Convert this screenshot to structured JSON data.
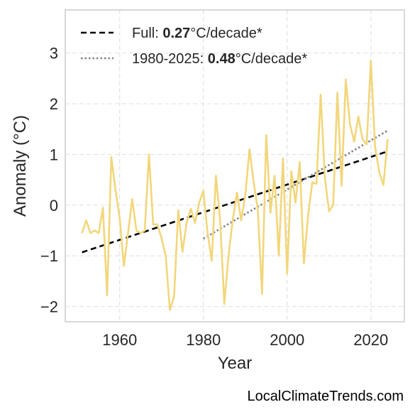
{
  "chart_data": {
    "type": "line",
    "xlabel": "Year",
    "ylabel": "Anomaly (°C)",
    "xlim": [
      1947,
      2028
    ],
    "ylim": [
      -2.3,
      3.85
    ],
    "xticks": [
      1960,
      1980,
      2000,
      2020
    ],
    "yticks": [
      -2,
      -1,
      0,
      1,
      2,
      3
    ],
    "ytick_labels": [
      "−2",
      "−1",
      "0",
      "1",
      "2",
      "3"
    ],
    "grid": true,
    "legend_position": "top-left",
    "series": [
      {
        "color": "#f2d67a",
        "x": [
          1951,
          1952,
          1953,
          1954,
          1955,
          1956,
          1957,
          1958,
          1959,
          1960,
          1961,
          1962,
          1963,
          1964,
          1965,
          1966,
          1967,
          1968,
          1969,
          1970,
          1971,
          1972,
          1973,
          1974,
          1975,
          1976,
          1977,
          1978,
          1979,
          1980,
          1981,
          1982,
          1983,
          1984,
          1985,
          1986,
          1987,
          1988,
          1989,
          1990,
          1991,
          1992,
          1993,
          1994,
          1995,
          1996,
          1997,
          1998,
          1999,
          2000,
          2001,
          2002,
          2003,
          2004,
          2005,
          2006,
          2007,
          2008,
          2009,
          2010,
          2011,
          2012,
          2013,
          2014,
          2015,
          2016,
          2017,
          2018,
          2019,
          2020,
          2021,
          2022,
          2023,
          2024
        ],
        "y": [
          -0.55,
          -0.3,
          -0.55,
          -0.5,
          -0.55,
          -0.05,
          -1.78,
          0.95,
          0.3,
          -0.25,
          -1.2,
          -0.55,
          0.12,
          -0.5,
          -0.55,
          -0.5,
          1.0,
          -0.38,
          -0.38,
          -0.65,
          -1.0,
          -2.07,
          -1.8,
          -0.1,
          -0.92,
          -0.35,
          -0.07,
          -0.35,
          0.05,
          0.28,
          -0.55,
          -1.1,
          0.58,
          -0.3,
          -1.95,
          -1.0,
          -0.3,
          0.25,
          -0.3,
          0.2,
          1.1,
          0.45,
          -0.1,
          -1.75,
          1.38,
          -0.15,
          0.58,
          -1.0,
          0.92,
          -1.35,
          0.67,
          0.05,
          0.85,
          -1.15,
          -0.2,
          0.45,
          0.42,
          2.18,
          0.55,
          -0.12,
          0.0,
          2.22,
          0.38,
          2.48,
          1.6,
          1.25,
          1.75,
          1.3,
          1.2,
          2.85,
          1.15,
          0.65,
          0.4,
          1.3
        ]
      }
    ],
    "trends": [
      {
        "label_prefix": "Full: ",
        "value": "0.27",
        "label_suffix": "°C/decade*",
        "x": [
          1951,
          2024
        ],
        "y": [
          -0.93,
          1.06
        ],
        "color": "#000000",
        "style": "dashed"
      },
      {
        "label_prefix": "1980-2025: ",
        "value": "0.48",
        "label_suffix": "°C/decade*",
        "x": [
          1980,
          2024
        ],
        "y": [
          -0.66,
          1.47
        ],
        "color": "#808080",
        "style": "dotted"
      }
    ]
  },
  "credit": "LocalClimateTrends.com"
}
